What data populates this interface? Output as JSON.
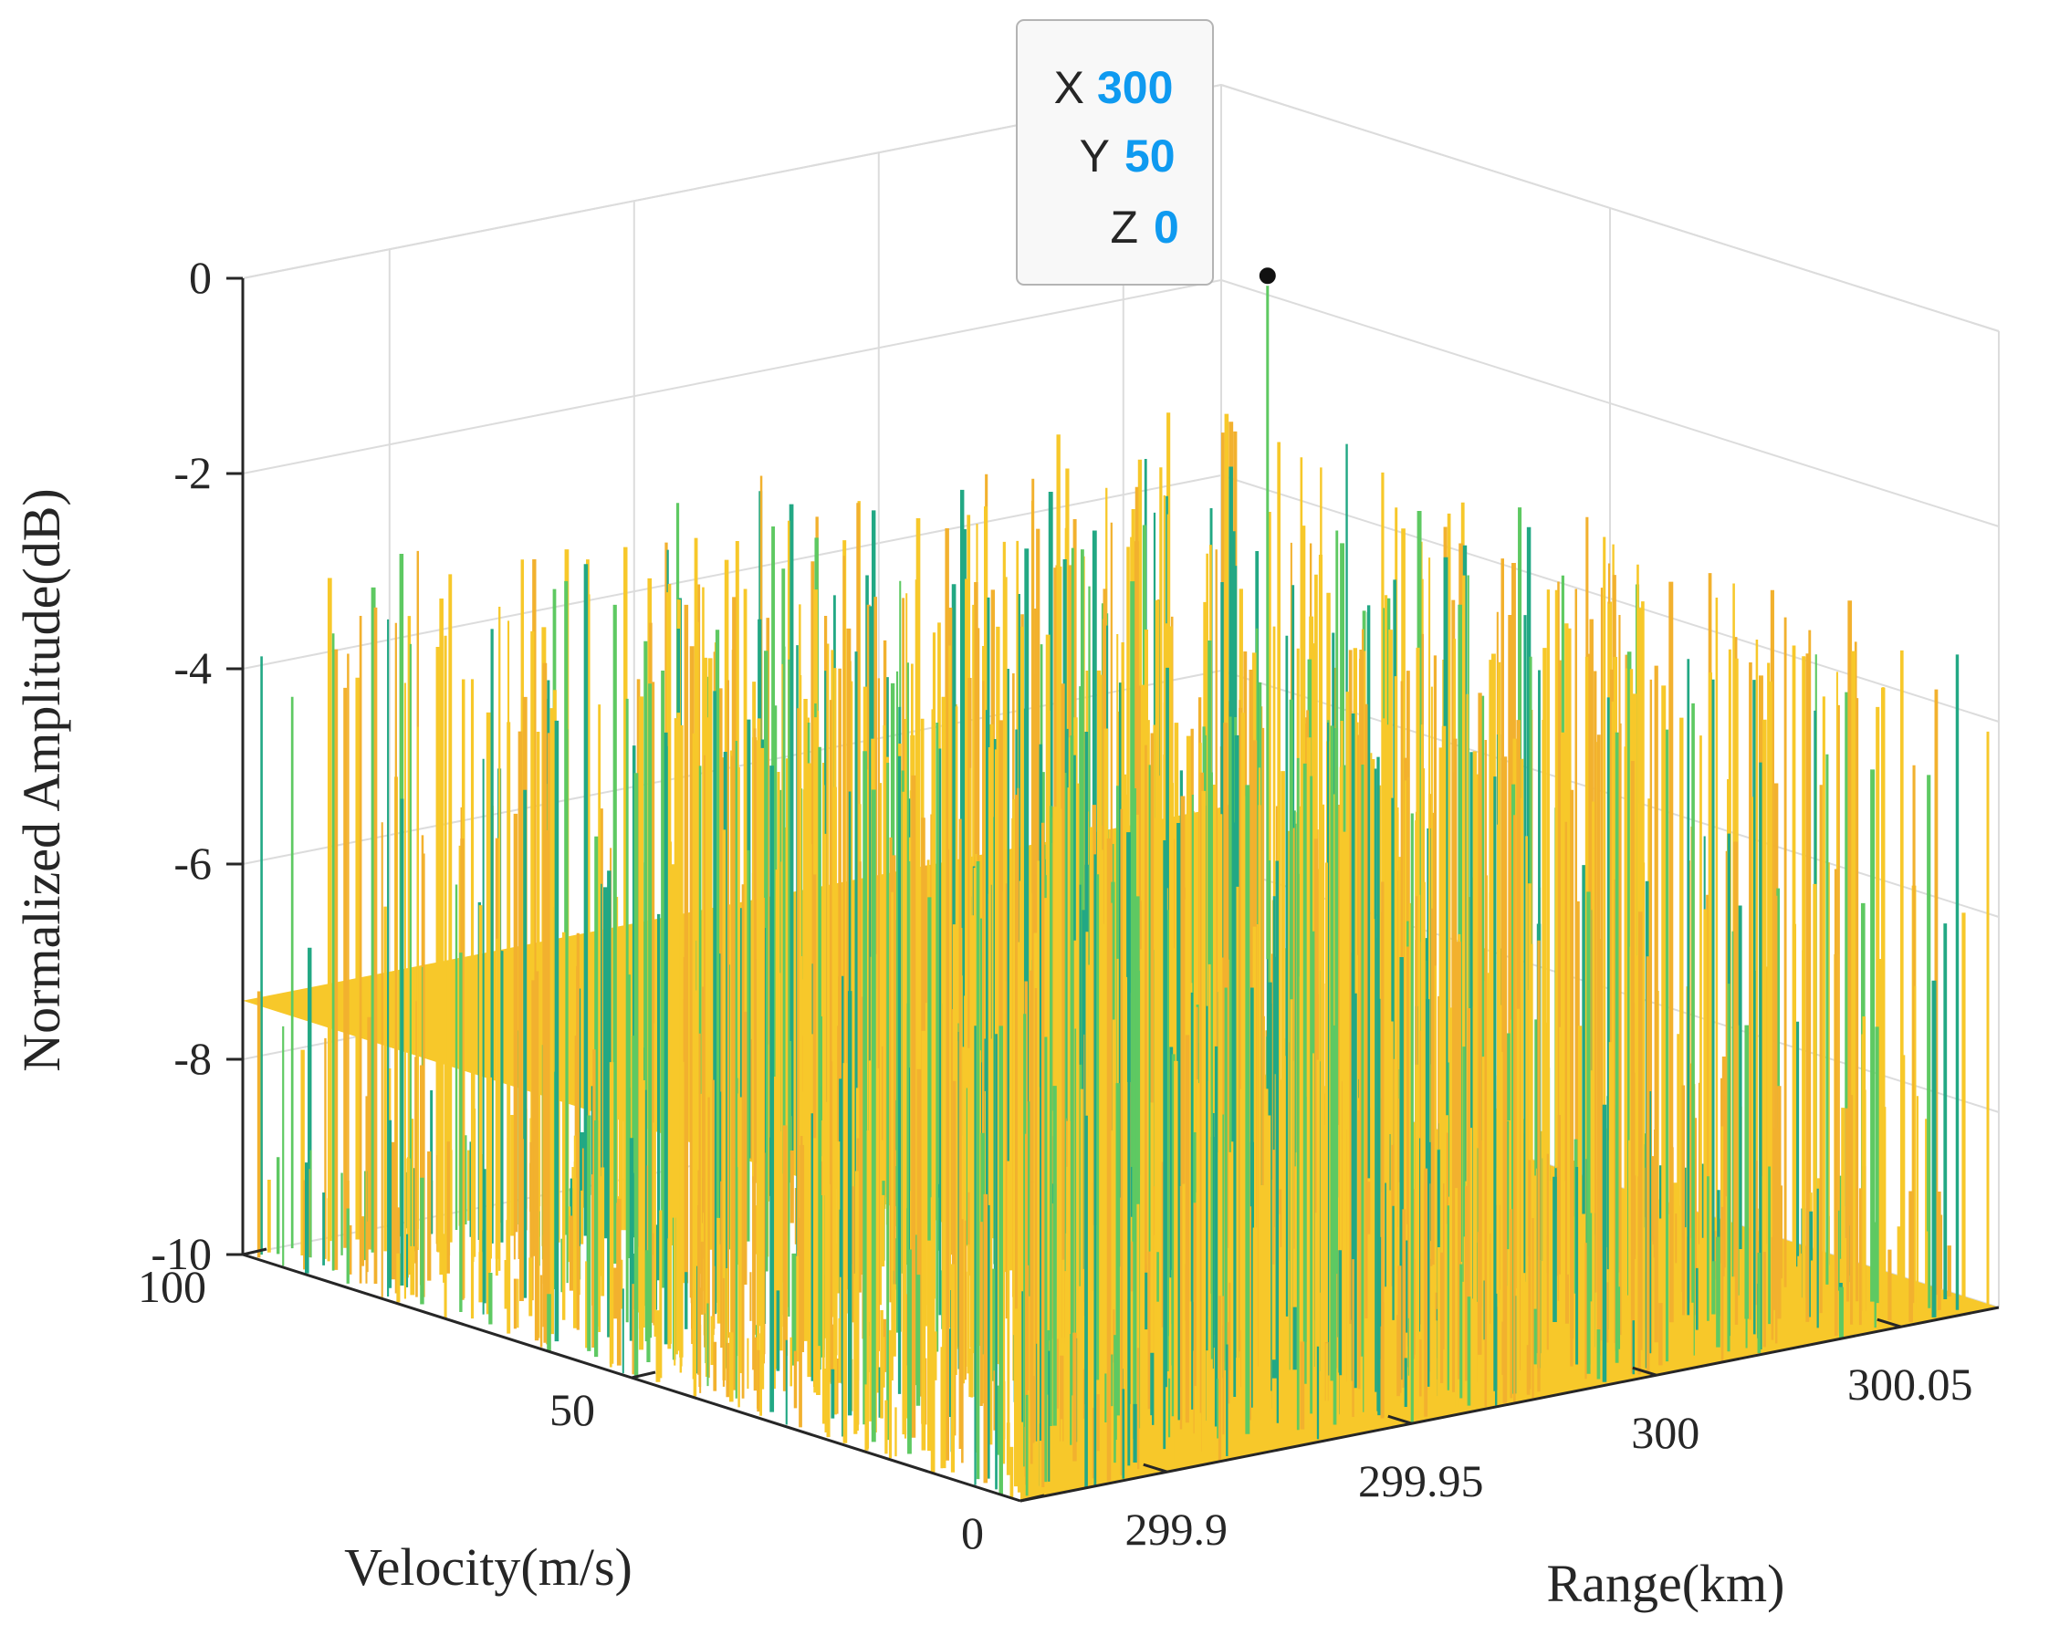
{
  "colors": {
    "background": "#ffffff",
    "grid": "#dcdcdc",
    "axis": "#262626",
    "datatip_value": "#0f9af0",
    "surface_yellow": "#f7c82a",
    "surface_orange": "#f2b12e",
    "surface_green": "#5ec962",
    "surface_teal": "#22a884"
  },
  "chart_data": {
    "type": "surface3d",
    "title": "",
    "xlabel": "Range(km)",
    "ylabel": "Velocity(m/s)",
    "zlabel": "Normalized Amplitude(dB)",
    "xlim": [
      299.87,
      300.07
    ],
    "ylim": [
      0,
      100
    ],
    "zlim": [
      -10,
      0
    ],
    "x_ticks": [
      "299.9",
      "299.95",
      "300",
      "300.05"
    ],
    "y_ticks": [
      "0",
      "50",
      "100"
    ],
    "z_ticks": [
      "0",
      "-2",
      "-4",
      "-6",
      "-8",
      "-10"
    ],
    "grid": true,
    "noise_floor_db": -8,
    "noise_range_db": [
      -10,
      -3
    ],
    "peak": {
      "x": 300,
      "y": 50,
      "z": 0
    },
    "datatip": {
      "x_key": "X",
      "x_value": "300",
      "y_key": "Y",
      "y_value": "50",
      "z_key": "Z",
      "z_value": "0"
    }
  }
}
